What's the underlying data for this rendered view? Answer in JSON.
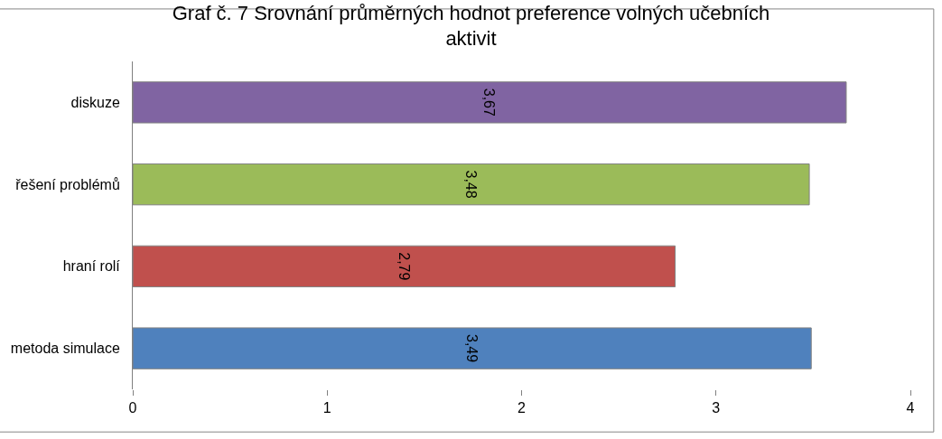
{
  "chart_data": {
    "type": "bar",
    "orientation": "horizontal",
    "title": "Graf č. 7 Srovnání průměrných hodnot preference volných učebních aktivit",
    "categories": [
      "diskuze",
      "řešení problémů",
      "hraní rolí",
      "metoda simulace"
    ],
    "values": [
      3.67,
      3.48,
      2.79,
      3.49
    ],
    "value_labels": [
      "3,67",
      "3,48",
      "2,79",
      "3,49"
    ],
    "colors": [
      "#8064a2",
      "#9bbb59",
      "#c0504d",
      "#4f81bd"
    ],
    "xlim": [
      0,
      4
    ],
    "xticks": [
      0,
      1,
      2,
      3,
      4
    ],
    "legend": false
  }
}
